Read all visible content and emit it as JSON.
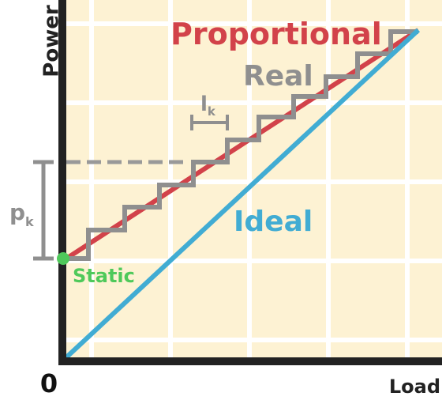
{
  "axes": {
    "y_label": "Power",
    "x_label": "Load",
    "origin": "0"
  },
  "curves": {
    "proportional": "Proportional",
    "real": "Real",
    "ideal": "Ideal",
    "static": "Static"
  },
  "annotations": {
    "p_main": "p",
    "p_sub": "k",
    "l_main": "l",
    "l_sub": "k"
  }
}
